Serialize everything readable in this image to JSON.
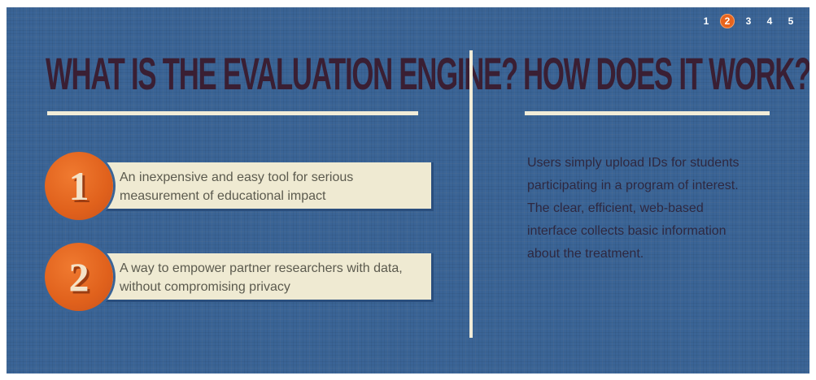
{
  "pager": {
    "pages": [
      "1",
      "2",
      "3",
      "4",
      "5"
    ],
    "active": "2"
  },
  "left": {
    "heading": "WHAT IS THE EVALUATION ENGINE?",
    "items": [
      {
        "number": "1",
        "text": "An inexpensive and easy tool for serious measurement of educational impact"
      },
      {
        "number": "2",
        "text": "A way to empower partner researchers with data, without compromising privacy"
      }
    ]
  },
  "right": {
    "heading": "HOW DOES IT WORK?",
    "body": "Users simply upload IDs for students participating in a program of interest. The clear, efficient, web-based interface collects basic information about the treatment."
  },
  "colors": {
    "background": "#3a6496",
    "accent": "#e8641d",
    "cream": "#f1ecd8",
    "heading": "#3a1f33"
  }
}
